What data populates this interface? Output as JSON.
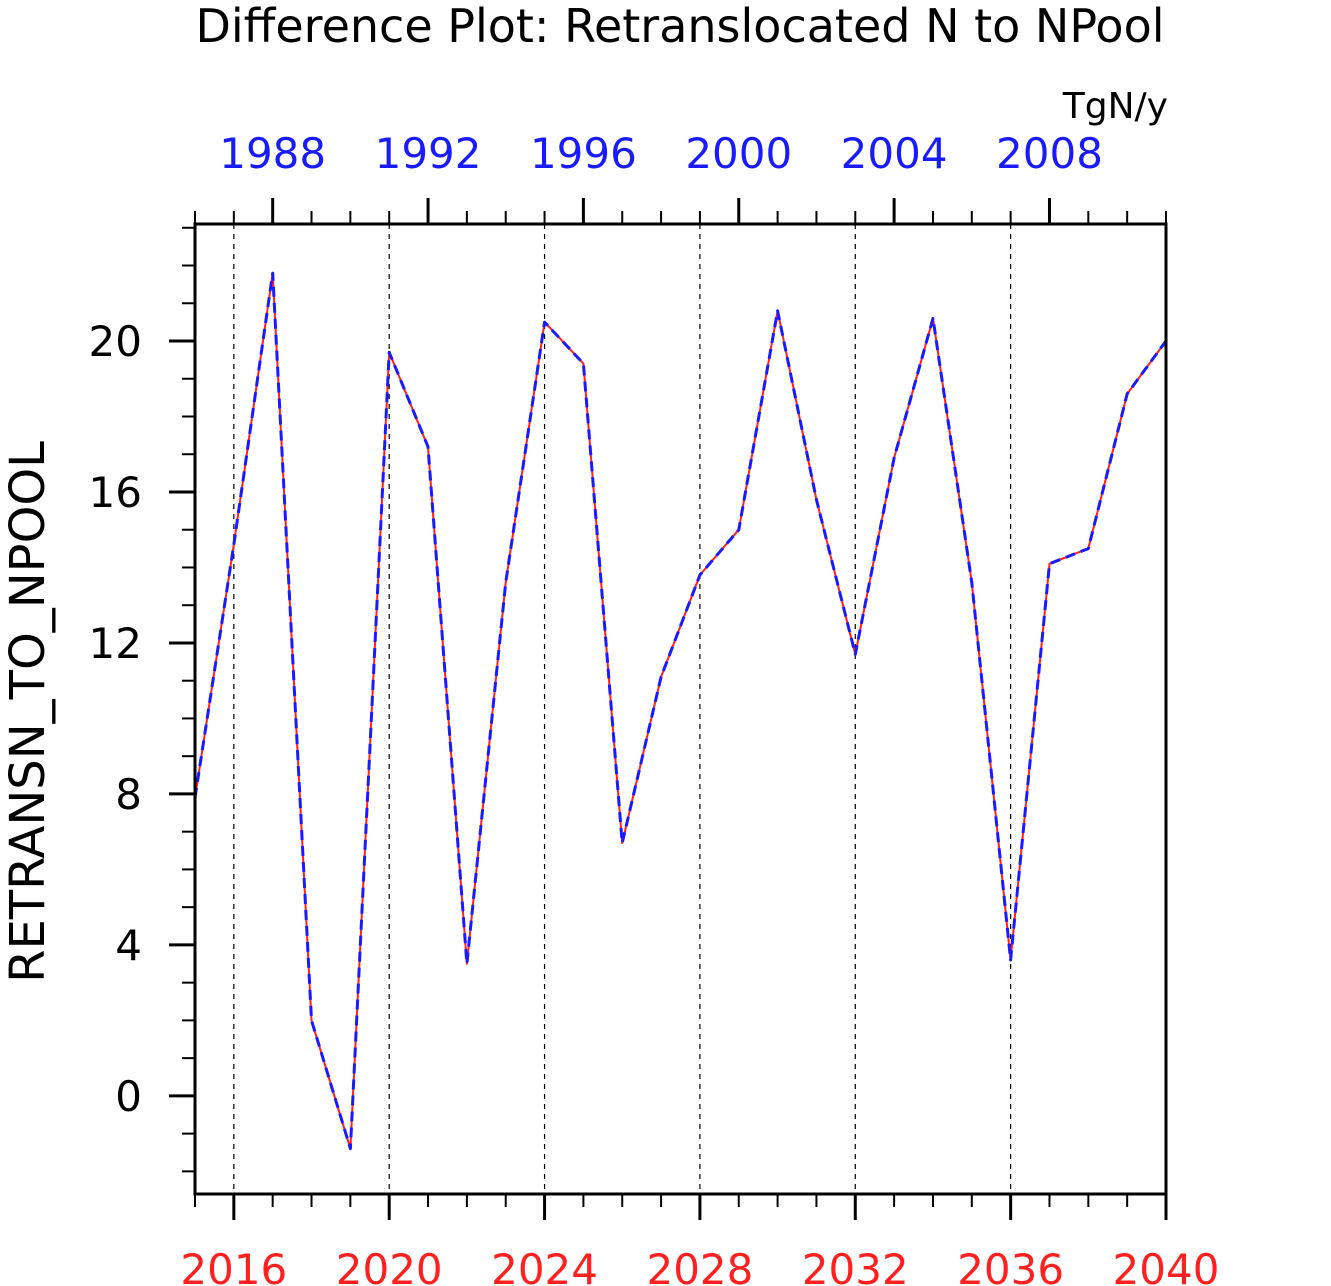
{
  "title": "Difference Plot: Retranslocated N to NPool",
  "units": "TgN/y",
  "ylabel": "RETRANSN_TO_NPOOL",
  "colors": {
    "bottom_axis": "#ff2020",
    "top_axis": "#1a1aff",
    "series_bottom": "#ff2020",
    "series_top": "#1a1aff",
    "frame": "#000000",
    "grid": "#000000"
  },
  "chart_data": {
    "type": "line",
    "title": "Difference Plot: Retranslocated N to NPool",
    "ylabel": "RETRANSN_TO_NPOOL",
    "units": "TgN/y",
    "ylim": [
      -2.6,
      23.1
    ],
    "yticks": [
      0,
      4,
      8,
      12,
      16,
      20
    ],
    "y_minor_step": 1,
    "x_bottom": {
      "range": [
        2015,
        2040
      ],
      "ticks": [
        2016,
        2020,
        2024,
        2028,
        2032,
        2036,
        2040
      ],
      "color": "red"
    },
    "x_top": {
      "range": [
        1986,
        2011
      ],
      "ticks": [
        1988,
        1992,
        1996,
        2000,
        2004,
        2008
      ],
      "color": "blue"
    },
    "grid": "vertical dashed at bottom-axis major ticks",
    "series": [
      {
        "axis": "bottom",
        "line_style": "solid",
        "color": "red",
        "x": [
          2015,
          2016,
          2017,
          2018,
          2019,
          2020,
          2021,
          2022,
          2023,
          2024,
          2025,
          2026,
          2027,
          2028,
          2029,
          2030,
          2031,
          2032,
          2033,
          2034,
          2035,
          2036,
          2037,
          2038,
          2039,
          2040
        ],
        "values": [
          7.9,
          14.6,
          21.8,
          2.0,
          -1.4,
          19.7,
          17.2,
          3.5,
          13.6,
          20.5,
          19.4,
          6.7,
          11.1,
          13.8,
          15.0,
          20.8,
          15.8,
          11.7,
          16.9,
          20.6,
          13.6,
          3.6,
          14.1,
          14.5,
          18.6,
          20.0
        ]
      },
      {
        "axis": "top",
        "line_style": "dashed",
        "color": "blue",
        "x": [
          1986,
          1987,
          1988,
          1989,
          1990,
          1991,
          1992,
          1993,
          1994,
          1995,
          1996,
          1997,
          1998,
          1999,
          2000,
          2001,
          2002,
          2003,
          2004,
          2005,
          2006,
          2007,
          2008,
          2009,
          2010,
          2011
        ],
        "values": [
          7.9,
          14.6,
          21.8,
          2.0,
          -1.4,
          19.7,
          17.2,
          3.5,
          13.6,
          20.5,
          19.4,
          6.7,
          11.1,
          13.8,
          15.0,
          20.8,
          15.8,
          11.7,
          16.9,
          20.6,
          13.6,
          3.6,
          14.1,
          14.5,
          18.6,
          20.0
        ]
      }
    ]
  }
}
